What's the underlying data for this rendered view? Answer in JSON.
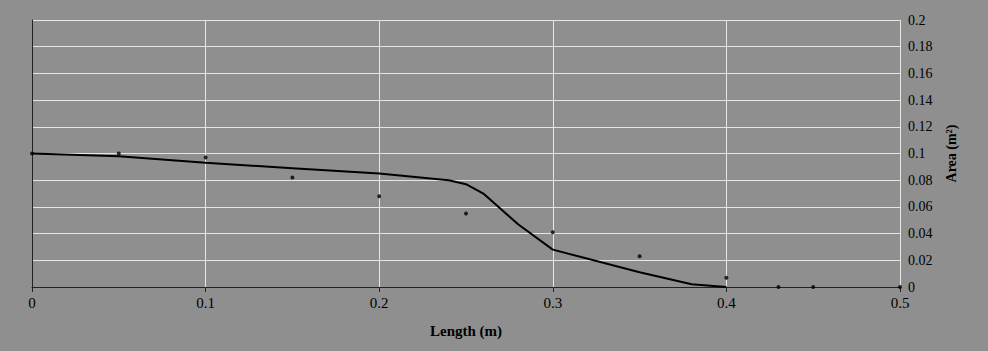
{
  "chart_data": {
    "type": "line",
    "x_label": "Length (m)",
    "y_label": "Area (m²)",
    "xlim": [
      0,
      0.5
    ],
    "xticks": [
      0,
      0.1,
      0.2,
      0.3,
      0.4,
      0.5
    ],
    "ylim": [
      0,
      0.2
    ],
    "yticks": [
      0,
      0.02,
      0.04,
      0.06,
      0.08,
      0.1,
      0.12,
      0.14,
      0.16,
      0.18,
      0.2
    ],
    "grid": true,
    "series": [
      {
        "color": "#000000",
        "line_style": "solid",
        "x": [
          0,
          0.05,
          0.1,
          0.15,
          0.2,
          0.24,
          0.25,
          0.26,
          0.28,
          0.3,
          0.35,
          0.38,
          0.4
        ],
        "values": [
          0.1,
          0.098,
          0.093,
          0.089,
          0.085,
          0.08,
          0.077,
          0.07,
          0.047,
          0.028,
          0.011,
          0.002,
          0
        ]
      },
      {
        "color": "#000000",
        "line_style": "dotted",
        "x": [
          0,
          0.05,
          0.1,
          0.15,
          0.2,
          0.25,
          0.3,
          0.35,
          0.4,
          0.43,
          0.45,
          0.5
        ],
        "values": [
          0.1,
          0.1,
          0.097,
          0.082,
          0.068,
          0.055,
          0.041,
          0.023,
          0.007,
          0,
          0,
          0
        ]
      }
    ]
  }
}
